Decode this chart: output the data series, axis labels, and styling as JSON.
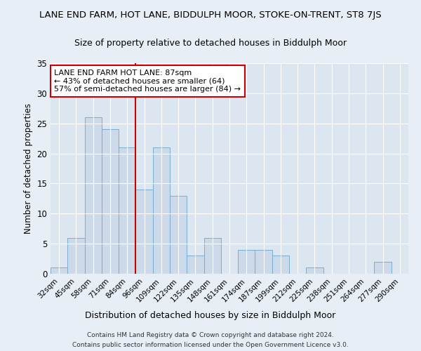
{
  "title": "LANE END FARM, HOT LANE, BIDDULPH MOOR, STOKE-ON-TRENT, ST8 7JS",
  "subtitle": "Size of property relative to detached houses in Biddulph Moor",
  "xlabel": "Distribution of detached houses by size in Biddulph Moor",
  "ylabel": "Number of detached properties",
  "categories": [
    "32sqm",
    "45sqm",
    "58sqm",
    "71sqm",
    "84sqm",
    "96sqm",
    "109sqm",
    "122sqm",
    "135sqm",
    "148sqm",
    "161sqm",
    "174sqm",
    "187sqm",
    "199sqm",
    "212sqm",
    "225sqm",
    "238sqm",
    "251sqm",
    "264sqm",
    "277sqm",
    "290sqm"
  ],
  "values": [
    1,
    6,
    26,
    24,
    21,
    14,
    21,
    13,
    3,
    6,
    0,
    4,
    4,
    3,
    0,
    1,
    0,
    0,
    0,
    2,
    0
  ],
  "bar_color": "#ccd9e8",
  "bar_edge_color": "#7aadcf",
  "vline_x_index": 4.5,
  "vline_color": "#cc0000",
  "annotation_text": "LANE END FARM HOT LANE: 87sqm\n← 43% of detached houses are smaller (64)\n57% of semi-detached houses are larger (84) →",
  "annotation_box_color": "#ffffff",
  "annotation_box_edge": "#cc0000",
  "ylim": [
    0,
    35
  ],
  "yticks": [
    0,
    5,
    10,
    15,
    20,
    25,
    30,
    35
  ],
  "plot_bg_color": "#dce6f0",
  "fig_bg_color": "#e8eef6",
  "footnote1": "Contains HM Land Registry data © Crown copyright and database right 2024.",
  "footnote2": "Contains public sector information licensed under the Open Government Licence v3.0."
}
